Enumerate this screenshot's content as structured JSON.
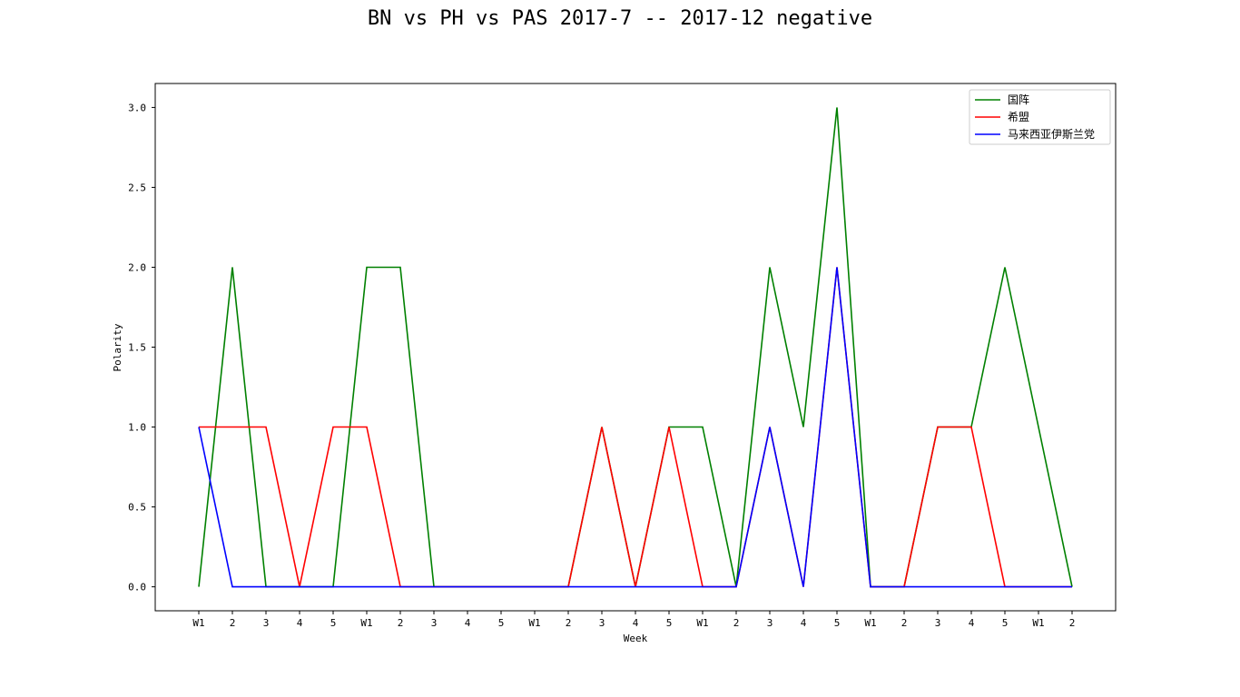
{
  "chart_data": {
    "type": "line",
    "title": "BN vs PH vs PAS 2017-7 -- 2017-12 negative",
    "xlabel": "Week",
    "ylabel": "Polarity",
    "ylim": [
      -0.15,
      3.15
    ],
    "yticks": [
      "0.0",
      "0.5",
      "1.0",
      "1.5",
      "2.0",
      "2.5",
      "3.0"
    ],
    "categories": [
      "W1",
      "2",
      "3",
      "4",
      "5",
      "W1",
      "2",
      "3",
      "4",
      "5",
      "W1",
      "2",
      "3",
      "4",
      "5",
      "W1",
      "2",
      "3",
      "4",
      "5",
      "W1",
      "2",
      "3",
      "4",
      "5",
      "W1",
      "2"
    ],
    "legend_position": "top-right",
    "grid": false,
    "series": [
      {
        "name": "国阵",
        "color": "#008000",
        "values": [
          0,
          2,
          0,
          0,
          0,
          2,
          2,
          0,
          0,
          0,
          0,
          0,
          1,
          0,
          1,
          1,
          0,
          2,
          1,
          3,
          0,
          0,
          1,
          1,
          2,
          1,
          0
        ]
      },
      {
        "name": "希盟",
        "color": "#ff0000",
        "values": [
          1,
          1,
          1,
          0,
          1,
          1,
          0,
          0,
          0,
          0,
          0,
          0,
          1,
          0,
          1,
          0,
          0,
          1,
          0,
          2,
          0,
          0,
          1,
          1,
          0,
          0,
          0
        ]
      },
      {
        "name": "马来西亚伊斯兰党",
        "color": "#0000ff",
        "values": [
          1,
          0,
          0,
          0,
          0,
          0,
          0,
          0,
          0,
          0,
          0,
          0,
          0,
          0,
          0,
          0,
          0,
          1,
          0,
          2,
          0,
          0,
          0,
          0,
          0,
          0,
          0
        ]
      }
    ]
  }
}
